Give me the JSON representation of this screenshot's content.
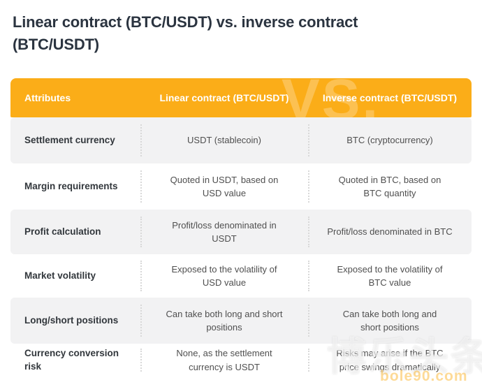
{
  "page": {
    "title": "Linear contract (BTC/USDT) vs. inverse contract (BTC/USDT)"
  },
  "table": {
    "header": {
      "attributes": "Attributes",
      "linear": "Linear contract (BTC/USDT)",
      "inverse": "Inverse contract (BTC/USDT)",
      "vs_watermark": "VS."
    },
    "rows": [
      {
        "attribute": "Settlement currency",
        "linear": "USDT (stablecoin)",
        "inverse": "BTC (cryptocurrency)"
      },
      {
        "attribute": "Margin requirements",
        "linear": "Quoted in USDT, based on\nUSD value",
        "inverse": "Quoted in BTC, based on\nBTC quantity"
      },
      {
        "attribute": "Profit calculation",
        "linear": "Profit/loss denominated in\nUSDT",
        "inverse": "Profit/loss denominated in BTC"
      },
      {
        "attribute": "Market volatility",
        "linear": "Exposed to the volatility of\nUSD value",
        "inverse": "Exposed to the volatility of\nBTC value"
      },
      {
        "attribute": "Long/short positions",
        "linear": "Can take both long and short\npositions",
        "inverse": "Can take both long and\nshort positions"
      },
      {
        "attribute": "Currency conversion risk",
        "linear": "None, as the settlement\ncurrency is USDT",
        "inverse": "Risks may arise if the BTC\nprice swings dramatically"
      }
    ]
  },
  "watermark": {
    "cjk_text": "博乐头条",
    "domain_text": "bole90.com"
  },
  "colors": {
    "header_bg": "#FBAD18",
    "alt_row_bg": "#F2F2F3",
    "title_text": "#2B3440",
    "attribute_text": "#32373C",
    "value_text": "#4F4F4F",
    "header_text": "#FFFFFF"
  }
}
